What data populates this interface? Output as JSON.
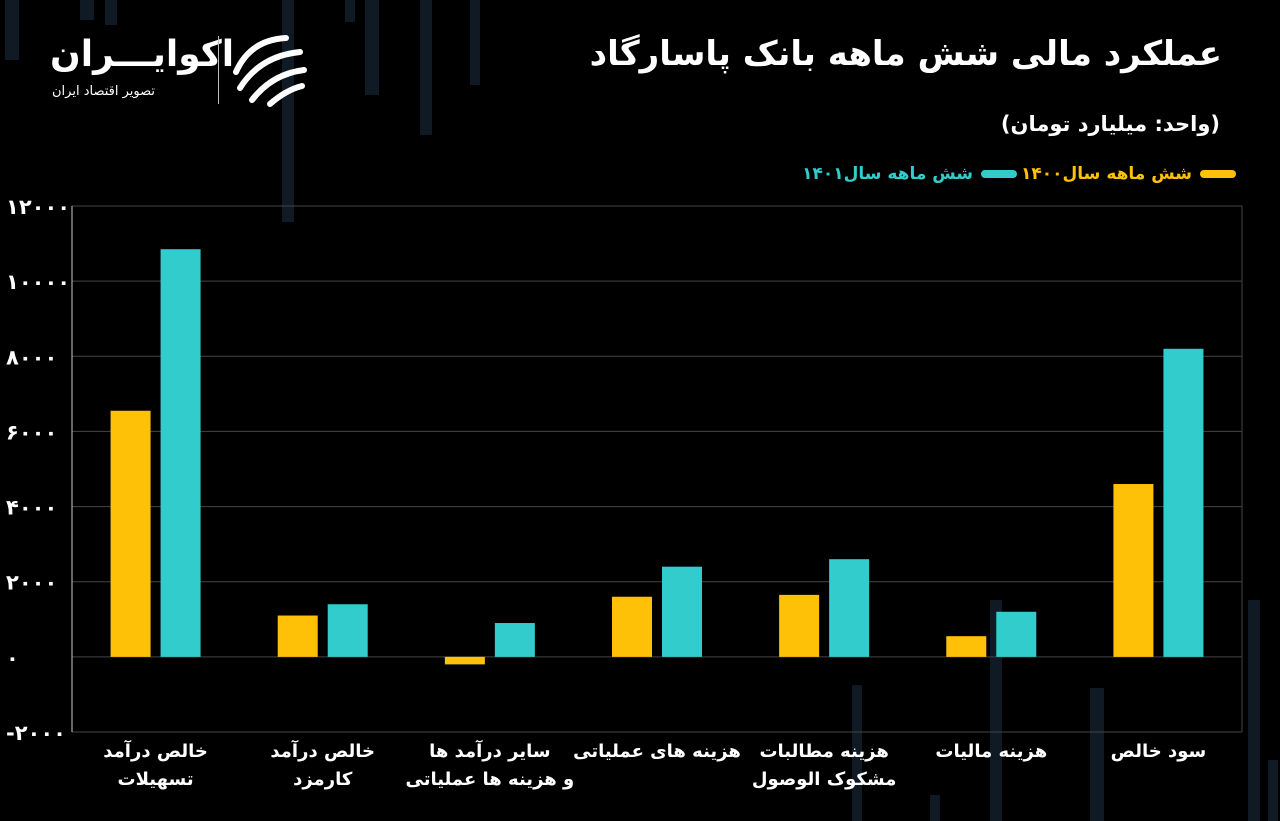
{
  "logo": {
    "name": "اکوایـــران",
    "subtitle": "تصویر اقتصاد ایران"
  },
  "colors": {
    "series_1400": "#FFC107",
    "series_1401": "#33CCCC",
    "grid": "#444444",
    "axis": "#cccccc"
  },
  "chart_data": {
    "type": "bar",
    "title": "عملکرد مالی شش ماهه بانک پاسارگاد",
    "unit_label": "(واحد: میلیارد تومان)",
    "categories": [
      [
        "خالص درآمد",
        "تسهیلات"
      ],
      [
        "خالص درآمد",
        "کارمزد"
      ],
      [
        "سایر درآمد ها",
        "و هزینه ها عملیاتی"
      ],
      [
        "هزینه های عملیاتی"
      ],
      [
        "هزینه مطالبات",
        "مشکوک الوصول"
      ],
      [
        "هزینه مالیات"
      ],
      [
        "سود خالص"
      ]
    ],
    "series": [
      {
        "name": "شش ماهه سال۱۴۰۰",
        "values": [
          6550,
          1100,
          -200,
          1600,
          1650,
          550,
          4600
        ]
      },
      {
        "name": "شش ماهه سال۱۴۰۱",
        "values": [
          10850,
          1400,
          900,
          2400,
          2600,
          1200,
          8200
        ]
      }
    ],
    "ylim": [
      -2000,
      12000
    ],
    "yticks": [
      "-۲۰۰۰",
      "۰",
      "۲۰۰۰",
      "۴۰۰۰",
      "۶۰۰۰",
      "۸۰۰۰",
      "۱۰۰۰۰",
      "۱۲۰۰۰"
    ],
    "ytick_values": [
      -2000,
      0,
      2000,
      4000,
      6000,
      8000,
      10000,
      12000
    ],
    "grid": true,
    "legend_position": "top-right"
  }
}
